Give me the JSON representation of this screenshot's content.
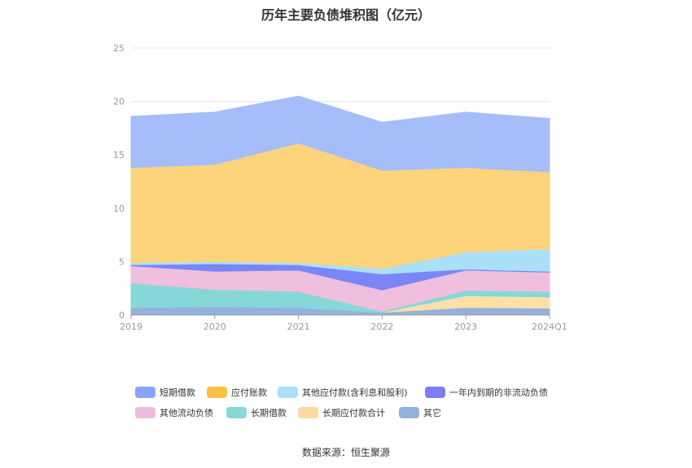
{
  "chart_data": {
    "type": "area",
    "stacked": true,
    "title": "历年主要负债堆积图（亿元）",
    "categories": [
      "2019",
      "2020",
      "2021",
      "2022",
      "2023",
      "2024Q1"
    ],
    "ylim": [
      0,
      25
    ],
    "yticks": [
      "0",
      "5",
      "10",
      "15",
      "20",
      "25"
    ],
    "grid": true,
    "legend_position": "bottom",
    "series": [
      {
        "name": "其它",
        "color": "#94b1dd",
        "values": [
          0.7,
          0.8,
          0.7,
          0.25,
          0.7,
          0.65
        ]
      },
      {
        "name": "长期应付款合计",
        "color": "#fde0a8",
        "values": [
          0,
          0,
          0,
          0,
          1.1,
          1.05
        ]
      },
      {
        "name": "长期借款",
        "color": "#86d8d8",
        "values": [
          2.3,
          1.6,
          1.5,
          0.1,
          0.5,
          0.5
        ]
      },
      {
        "name": "其他流动负债",
        "color": "#efbfdd",
        "values": [
          1.6,
          1.7,
          2.0,
          2.0,
          1.9,
          1.8
        ]
      },
      {
        "name": "一年内到期的非流动负债",
        "color": "#7b86f6",
        "values": [
          0.1,
          0.7,
          0.5,
          1.5,
          0.1,
          0.1
        ]
      },
      {
        "name": "其他应付款(含利息和股利)",
        "color": "#a9e0f8",
        "values": [
          0.2,
          0.2,
          0.2,
          0.5,
          1.6,
          2.1
        ]
      },
      {
        "name": "应付账款",
        "color": "#fdd47c",
        "values": [
          8.9,
          9.1,
          11.2,
          9.2,
          7.9,
          7.2
        ]
      },
      {
        "name": "短期借款",
        "color": "#a6bdfb",
        "values": [
          4.8,
          4.9,
          4.4,
          4.5,
          5.2,
          5.0
        ]
      }
    ]
  },
  "legend": {
    "items": [
      {
        "label": "短期借款",
        "color": "#86a5fa"
      },
      {
        "label": "应付账款",
        "color": "#fcc140"
      },
      {
        "label": "其他应付款(含利息和股利)",
        "color": "#a9e0f8"
      },
      {
        "label": "一年内到期的非流动负债",
        "color": "#7b7ef7"
      },
      {
        "label": "其他流动负债",
        "color": "#ebbcdc"
      },
      {
        "label": "长期借款",
        "color": "#86d8d8"
      },
      {
        "label": "长期应付款合计",
        "color": "#fdd9a0"
      },
      {
        "label": "其它",
        "color": "#94b1dd"
      }
    ]
  },
  "source_note": "数据来源：恒生聚源"
}
